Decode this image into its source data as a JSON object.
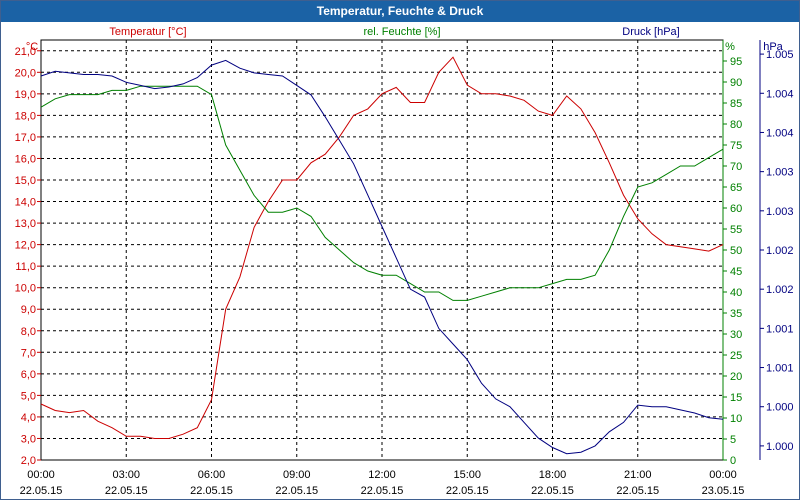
{
  "window": {
    "title": "Temperatur, Feuchte & Druck"
  },
  "chart_data": {
    "type": "line",
    "title": "Temperatur, Feuchte & Druck",
    "x_ticks": [
      {
        "time": "00:00",
        "date": "22.05.15"
      },
      {
        "time": "03:00",
        "date": "22.05.15"
      },
      {
        "time": "06:00",
        "date": "22.05.15"
      },
      {
        "time": "09:00",
        "date": "22.05.15"
      },
      {
        "time": "12:00",
        "date": "22.05.15"
      },
      {
        "time": "15:00",
        "date": "22.05.15"
      },
      {
        "time": "18:00",
        "date": "22.05.15"
      },
      {
        "time": "21:00",
        "date": "22.05.15"
      },
      {
        "time": "00:00",
        "date": "23.05.15"
      }
    ],
    "xlim_hours": [
      0,
      24
    ],
    "axes": {
      "temperature": {
        "label": "Temperatur [°C]",
        "unit": "°C",
        "color": "#cc0000",
        "ylim": [
          2.0,
          21.5
        ],
        "ticks": [
          "2,0",
          "3,0",
          "4,0",
          "5,0",
          "6,0",
          "7,0",
          "8,0",
          "9,0",
          "10,0",
          "11,0",
          "12,0",
          "13,0",
          "14,0",
          "15,0",
          "16,0",
          "17,0",
          "18,0",
          "19,0",
          "20,0",
          "21,0"
        ]
      },
      "humidity": {
        "label": "rel. Feuchte [%]",
        "unit": "%",
        "color": "#008000",
        "ylim": [
          0,
          100
        ],
        "ticks": [
          "0",
          "5",
          "10",
          "15",
          "20",
          "25",
          "30",
          "35",
          "40",
          "45",
          "50",
          "55",
          "60",
          "65",
          "70",
          "75",
          "80",
          "85",
          "90",
          "95"
        ]
      },
      "pressure": {
        "label": "Druck [hPa]",
        "unit": "hPa",
        "color": "#000080",
        "ylim": [
          999.82,
          1005.18
        ],
        "ticks": [
          "1.000",
          "1.000",
          "1.001",
          "1.001",
          "1.002",
          "1.002",
          "1.003",
          "1.003",
          "1.004",
          "1.004",
          "1.005"
        ]
      }
    },
    "series": [
      {
        "name": "Temperatur",
        "axis": "temperature",
        "unit": "°C",
        "hours": [
          0,
          0.5,
          1,
          1.5,
          2,
          2.5,
          3,
          3.5,
          4,
          4.5,
          5,
          5.5,
          6,
          6.5,
          7,
          7.5,
          8,
          8.5,
          9,
          9.5,
          10,
          10.5,
          11,
          11.5,
          12,
          12.5,
          13,
          13.5,
          14,
          14.5,
          15,
          15.5,
          16,
          16.5,
          17,
          17.5,
          18,
          18.5,
          19,
          19.5,
          20,
          20.5,
          21,
          21.5,
          22,
          22.5,
          23,
          23.5,
          24
        ],
        "values": [
          4.6,
          4.3,
          4.2,
          4.3,
          3.8,
          3.5,
          3.1,
          3.1,
          3.0,
          3.0,
          3.2,
          3.5,
          4.8,
          9.0,
          10.5,
          12.8,
          14.0,
          15.0,
          15.0,
          15.8,
          16.2,
          17.0,
          18.0,
          18.3,
          19.0,
          19.3,
          18.6,
          18.6,
          20.0,
          20.7,
          19.4,
          19.0,
          19.0,
          18.9,
          18.7,
          18.2,
          18.0,
          18.9,
          18.3,
          17.2,
          15.8,
          14.3,
          13.2,
          12.5,
          12.0,
          11.9,
          11.8,
          11.7,
          12.0
        ]
      },
      {
        "name": "rel. Feuchte",
        "axis": "humidity",
        "unit": "%",
        "hours": [
          0,
          0.5,
          1,
          1.5,
          2,
          2.5,
          3,
          3.5,
          4,
          4.5,
          5,
          5.5,
          6,
          6.5,
          7,
          7.5,
          8,
          8.5,
          9,
          9.5,
          10,
          10.5,
          11,
          11.5,
          12,
          12.5,
          13,
          13.5,
          14,
          14.5,
          15,
          15.5,
          16,
          16.5,
          17,
          17.5,
          18,
          18.5,
          19,
          19.5,
          20,
          20.5,
          21,
          21.5,
          22,
          22.5,
          23,
          23.5,
          24
        ],
        "values": [
          84,
          86,
          87,
          87,
          87,
          88,
          88,
          89,
          89,
          89,
          89,
          89,
          87,
          75,
          69,
          63,
          59,
          59,
          60,
          58,
          53,
          50,
          47,
          45,
          44,
          44,
          42,
          40,
          40,
          38,
          38,
          39,
          40,
          41,
          41,
          41,
          42,
          43,
          43,
          44,
          50,
          58,
          65,
          66,
          68,
          70,
          70,
          72,
          74
        ]
      },
      {
        "name": "Druck",
        "axis": "pressure",
        "unit": "hPa",
        "hours": [
          0,
          0.5,
          1,
          1.5,
          2,
          2.5,
          3,
          3.5,
          4,
          4.5,
          5,
          5.5,
          6,
          6.5,
          7,
          7.5,
          8,
          8.5,
          9,
          9.5,
          10,
          10.5,
          11,
          11.5,
          12,
          12.5,
          13,
          13.5,
          14,
          14.5,
          15,
          15.5,
          16,
          16.5,
          17,
          17.5,
          18,
          18.5,
          19,
          19.5,
          20,
          20.5,
          21,
          21.5,
          22,
          22.5,
          23,
          23.5,
          24
        ],
        "values": [
          1004.72,
          1004.78,
          1004.76,
          1004.74,
          1004.74,
          1004.72,
          1004.64,
          1004.6,
          1004.56,
          1004.58,
          1004.62,
          1004.7,
          1004.86,
          1004.92,
          1004.82,
          1004.76,
          1004.74,
          1004.72,
          1004.6,
          1004.48,
          1004.2,
          1003.9,
          1003.6,
          1003.2,
          1002.8,
          1002.4,
          1002.0,
          1001.9,
          1001.5,
          1001.3,
          1001.1,
          1000.8,
          1000.6,
          1000.5,
          1000.3,
          1000.1,
          999.98,
          999.9,
          999.92,
          1000.0,
          1000.18,
          1000.3,
          1000.52,
          1000.5,
          1000.5,
          1000.46,
          1000.42,
          1000.36,
          1000.34
        ]
      }
    ],
    "grid": true
  }
}
